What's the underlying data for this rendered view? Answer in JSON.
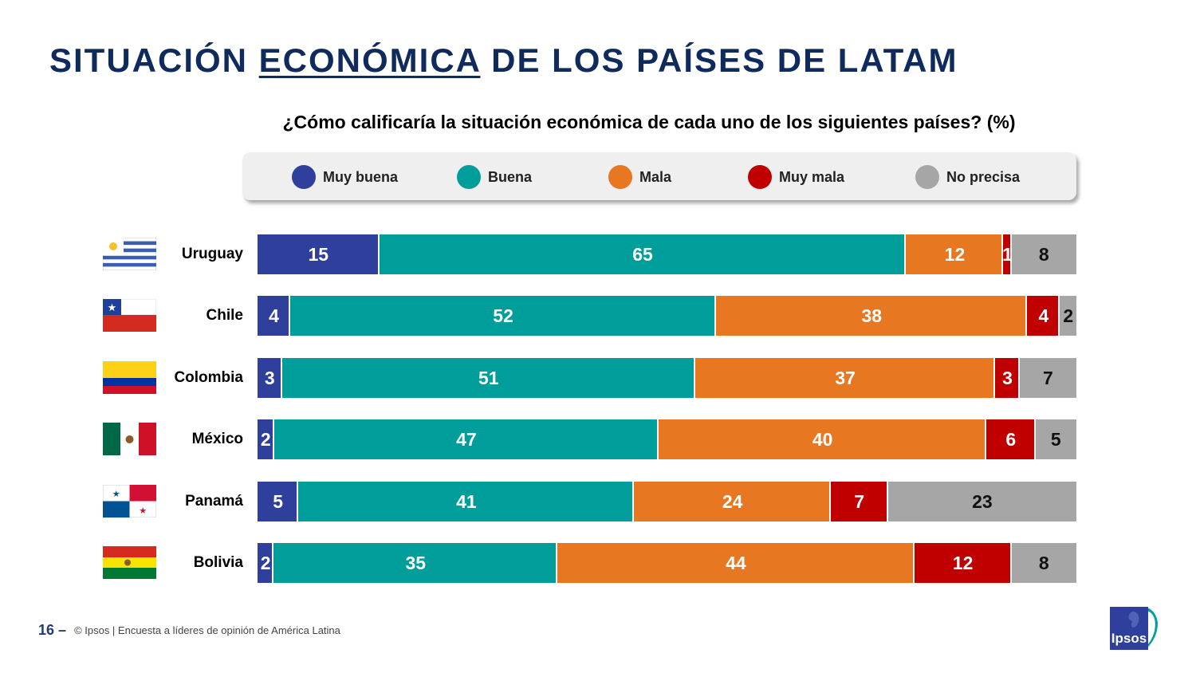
{
  "header": {
    "title_part1": "SITUACIÓN ",
    "title_underlined": "ECONÓMICA",
    "title_part2": " DE LOS PAÍSES DE LATAM",
    "question": "¿Cómo calificaría la situación económica de cada uno de los siguientes países? (%)"
  },
  "chart_data": {
    "type": "bar",
    "orientation": "horizontal",
    "stacked": true,
    "categories": [
      "Uruguay",
      "Chile",
      "Colombia",
      "México",
      "Panamá",
      "Bolivia"
    ],
    "series": [
      {
        "name": "Muy buena",
        "color": "#2e3f9c",
        "values": [
          15,
          4,
          3,
          2,
          5,
          2
        ]
      },
      {
        "name": "Buena",
        "color": "#009e9a",
        "values": [
          65,
          52,
          51,
          47,
          41,
          35
        ]
      },
      {
        "name": "Mala",
        "color": "#e87722",
        "values": [
          12,
          38,
          37,
          40,
          24,
          44
        ]
      },
      {
        "name": "Muy mala",
        "color": "#c00000",
        "values": [
          1,
          4,
          3,
          6,
          7,
          12
        ]
      },
      {
        "name": "No precisa",
        "color": "#a6a6a6",
        "values": [
          8,
          2,
          7,
          5,
          23,
          8
        ]
      }
    ],
    "legend_position": "top",
    "grid": false,
    "xlim": [
      0,
      100
    ]
  },
  "legend_x_positions": [
    366,
    573,
    763,
    938,
    1148
  ],
  "flags": [
    "uruguay-flag-icon",
    "chile-flag-icon",
    "colombia-flag-icon",
    "mexico-flag-icon",
    "panama-flag-icon",
    "bolivia-flag-icon"
  ],
  "footer": {
    "page": "16",
    "dash": "–",
    "source": "© Ipsos | Encuesta a líderes de opinión de América Latina"
  },
  "logo": {
    "text": "Ipsos"
  }
}
